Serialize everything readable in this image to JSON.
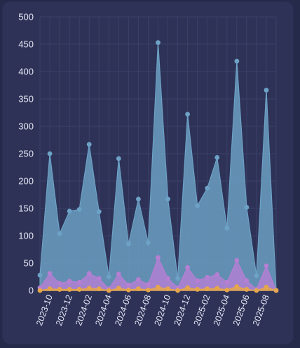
{
  "chart_data": {
    "type": "area",
    "x": [
      "2023-09",
      "2023-10",
      "2023-11",
      "2023-12",
      "2024-01",
      "2024-02",
      "2024-03",
      "2024-04",
      "2024-05",
      "2024-06",
      "2024-07",
      "2024-08",
      "2024-09",
      "2024-10",
      "2024-11",
      "2024-12",
      "2025-01",
      "2025-02",
      "2025-03",
      "2025-04",
      "2025-05",
      "2025-06",
      "2025-07",
      "2025-08",
      "2025-09"
    ],
    "x_tick_labels": [
      "2023-10",
      "2023-12",
      "2024-02",
      "2024-04",
      "2024-06",
      "2024-08",
      "2024-10",
      "2024-12",
      "2025-02",
      "2025-04",
      "2025-06",
      "2025-08"
    ],
    "series": [
      {
        "color": "#6da2c6",
        "values": [
          28,
          250,
          104,
          145,
          148,
          267,
          144,
          25,
          241,
          85,
          167,
          87,
          453,
          167,
          22,
          322,
          155,
          187,
          243,
          114,
          419,
          152,
          27,
          366,
          0
        ]
      },
      {
        "color": "#b57fd3",
        "values": [
          5,
          31,
          13,
          17,
          15,
          31,
          22,
          3,
          30,
          10,
          20,
          11,
          60,
          22,
          5,
          42,
          18,
          24,
          29,
          15,
          55,
          18,
          2,
          45,
          0
        ]
      },
      {
        "color": "#e5a64b",
        "values": [
          0,
          3,
          2,
          2,
          2,
          4,
          3,
          0,
          4,
          1,
          3,
          1,
          6,
          3,
          0,
          5,
          2,
          3,
          4,
          1,
          7,
          2,
          0,
          6,
          0
        ]
      }
    ],
    "y_ticks": [
      0,
      50,
      100,
      150,
      200,
      250,
      300,
      350,
      400,
      450,
      500
    ],
    "ylim": [
      0,
      500
    ],
    "grid": true,
    "legend": "none"
  },
  "colors": {
    "background": "#262a4a",
    "panel": "#2e3257",
    "grid": "#3b4067",
    "text": "#e6e8f5"
  }
}
